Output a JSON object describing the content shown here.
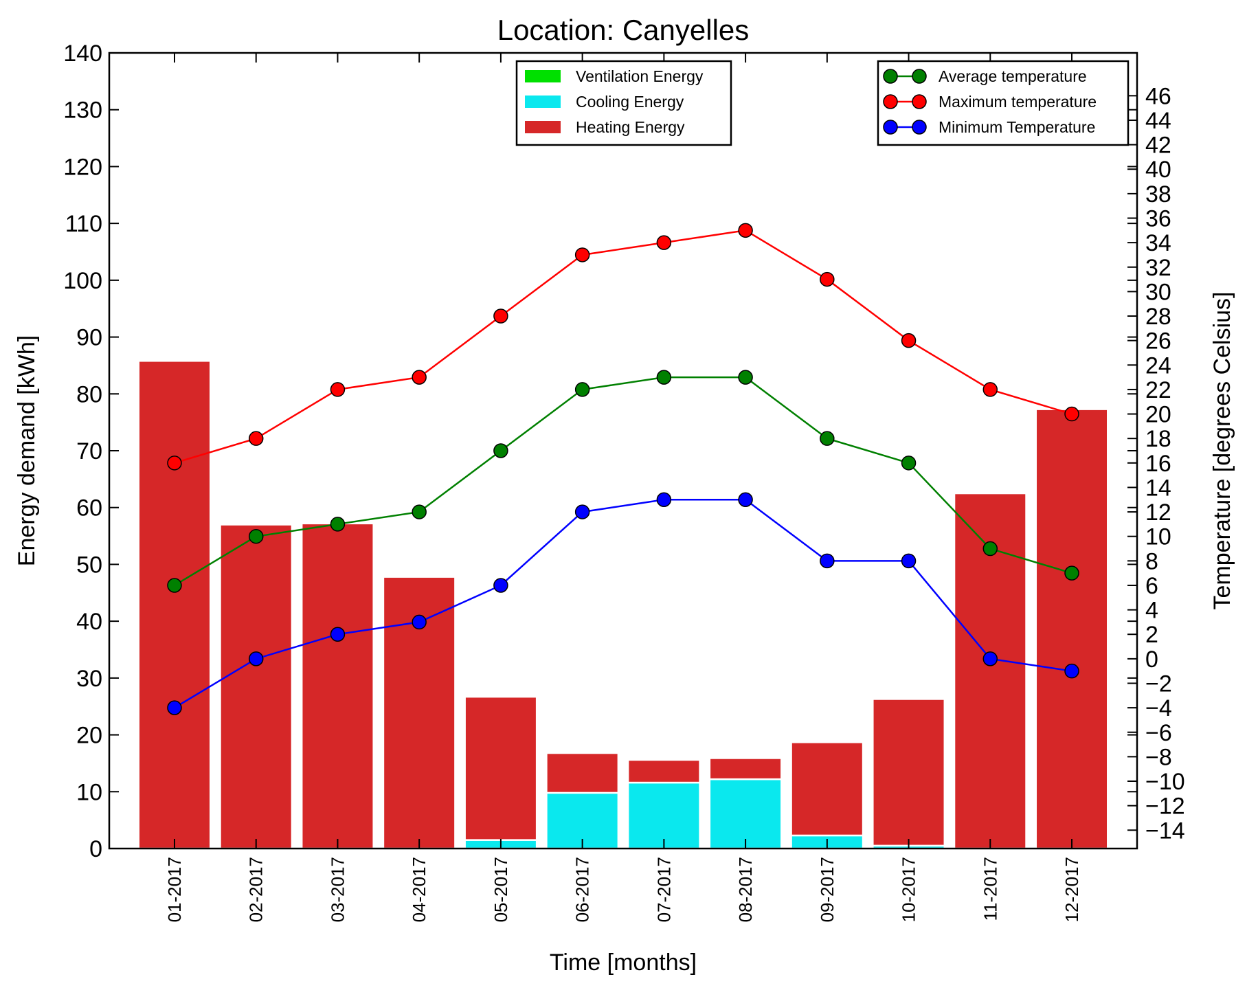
{
  "chart_data": {
    "type": "bar+line",
    "title": "Location: Canyelles",
    "xlabel": "Time [months]",
    "ylabel_left": "Energy demand [kWh]",
    "ylabel_right": "Temperature [degrees Celsius]",
    "ylim_left": [
      0,
      140
    ],
    "ylim_right": [
      -15.5,
      49.5
    ],
    "yticks_left": [
      "0",
      "10",
      "20",
      "30",
      "40",
      "50",
      "60",
      "70",
      "80",
      "90",
      "100",
      "110",
      "120",
      "130",
      "140"
    ],
    "yticks_right": [
      "−14",
      "−12",
      "−10",
      "−8",
      "−6",
      "−4",
      "−2",
      "0",
      "2",
      "4",
      "6",
      "8",
      "10",
      "12",
      "14",
      "16",
      "18",
      "20",
      "22",
      "24",
      "26",
      "28",
      "30",
      "32",
      "34",
      "36",
      "38",
      "40",
      "42",
      "44",
      "46"
    ],
    "yticks_right_values": [
      -14,
      -12,
      -10,
      -8,
      -6,
      -4,
      -2,
      0,
      2,
      4,
      6,
      8,
      10,
      12,
      14,
      16,
      18,
      20,
      22,
      24,
      26,
      28,
      30,
      32,
      34,
      36,
      38,
      40,
      42,
      44,
      46
    ],
    "categories": [
      "01-2017",
      "02-2017",
      "03-2017",
      "04-2017",
      "05-2017",
      "06-2017",
      "07-2017",
      "08-2017",
      "09-2017",
      "10-2017",
      "11-2017",
      "12-2017"
    ],
    "bar_series": [
      {
        "name": "Ventilation Energy",
        "color": "#00e000",
        "values": [
          0,
          0,
          0,
          0,
          0,
          0,
          0,
          0,
          0,
          0,
          0,
          0
        ]
      },
      {
        "name": "Cooling Energy",
        "color": "#0ae8ee",
        "values": [
          0,
          0,
          0,
          0,
          1.5,
          9.8,
          11.6,
          12.2,
          2.3,
          0.5,
          0,
          0
        ]
      },
      {
        "name": "Heating Energy",
        "color": "#d62728",
        "values": [
          85.8,
          57.0,
          57.2,
          47.8,
          25.2,
          7.0,
          4.0,
          3.7,
          16.4,
          25.8,
          62.5,
          77.3
        ]
      }
    ],
    "line_series": [
      {
        "name": "Average temperature",
        "color": "#008000",
        "values": [
          6,
          10,
          11,
          12,
          17,
          22,
          23,
          23,
          18,
          16,
          9,
          7
        ]
      },
      {
        "name": "Maximum temperature",
        "color": "#ff0000",
        "values": [
          16,
          18,
          22,
          23,
          28,
          33,
          34,
          35,
          31,
          26,
          22,
          20
        ]
      },
      {
        "name": "Minimum Temperature",
        "color": "#0000ff",
        "values": [
          -4,
          0,
          2,
          3,
          6,
          12,
          13,
          13,
          8,
          8,
          0,
          -1
        ]
      }
    ],
    "legend_bars_position": "upper-center",
    "legend_lines_position": "upper-right",
    "grid": false
  }
}
